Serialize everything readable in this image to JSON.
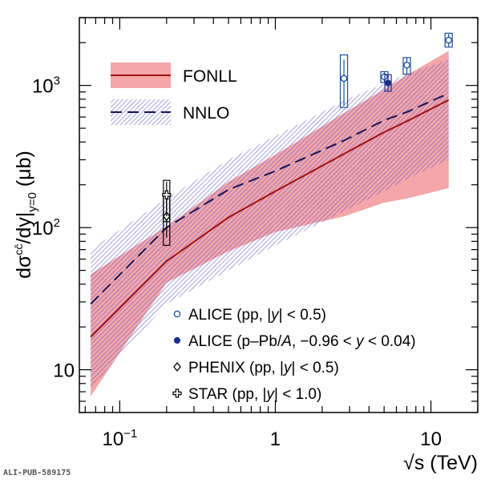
{
  "chart_data": {
    "type": "line",
    "xlabel": "√s (TeV)",
    "ylabel": "dσ^{cc̄}/dy|_{y=0} (μb)",
    "xscale": "log",
    "yscale": "log",
    "xlim": [
      0.055,
      20
    ],
    "ylim": [
      5,
      3000
    ],
    "xticks": [
      {
        "value": 0.1,
        "label": "10",
        "sup": "−1"
      },
      {
        "value": 1,
        "label": "1"
      },
      {
        "value": 10,
        "label": "10"
      }
    ],
    "yticks": [
      {
        "value": 10,
        "label": "10"
      },
      {
        "value": 100,
        "label": "10",
        "sup": "2"
      },
      {
        "value": 1000,
        "label": "10",
        "sup": "3"
      }
    ],
    "bands": [
      {
        "name": "FONLL",
        "color": "#f4a6a8",
        "line_color": "#a01010",
        "line_style": "solid",
        "x": [
          0.065,
          0.2,
          0.5,
          1.0,
          2.76,
          5.02,
          7.0,
          13.0
        ],
        "central": [
          17,
          58,
          118,
          180,
          330,
          470,
          560,
          790
        ],
        "lower": [
          6.5,
          41,
          68,
          93,
          120,
          150,
          160,
          190
        ],
        "upper": [
          47,
          102,
          210,
          325,
          640,
          940,
          1180,
          1750
        ]
      },
      {
        "name": "NNLO",
        "color": "#6a5acd",
        "line_color": "#14145a",
        "line_style": "dashed",
        "x": [
          0.065,
          0.2,
          0.5,
          1.0,
          2.76,
          5.02,
          7.0,
          13.0
        ],
        "central": [
          29,
          100,
          185,
          250,
          410,
          570,
          650,
          880
        ],
        "lower": [
          7.5,
          29,
          50,
          75,
          130,
          180,
          220,
          300
        ],
        "upper": [
          70,
          160,
          300,
          440,
          780,
          1030,
          1200,
          1520
        ]
      }
    ],
    "points": [
      {
        "series": "ALICE (pp, |y| < 0.5)",
        "marker": "circle-open",
        "color": "#1b4aa0",
        "x": 2.76,
        "y": 1120,
        "err_lo": 720,
        "err_hi": 1520,
        "box_lo": 700,
        "box_hi": 1640
      },
      {
        "series": "ALICE (pp, |y| < 0.5)",
        "marker": "circle-open",
        "color": "#1b4aa0",
        "x": 5.02,
        "y": 1150,
        "err_lo": 1060,
        "err_hi": 1240,
        "box_lo": 1050,
        "box_hi": 1250
      },
      {
        "series": "ALICE (pp, |y| < 0.5)",
        "marker": "circle-open",
        "color": "#1b4aa0",
        "x": 7.0,
        "y": 1390,
        "err_lo": 1200,
        "err_hi": 1560,
        "box_lo": 1200,
        "box_hi": 1570
      },
      {
        "series": "ALICE (pp, |y| < 0.5)",
        "marker": "circle-open",
        "color": "#1b4aa0",
        "x": 13.0,
        "y": 2080,
        "err_lo": 1880,
        "err_hi": 2300,
        "box_lo": 1860,
        "box_hi": 2330
      },
      {
        "series": "ALICE (p–Pb/A, −0.96 < y < 0.04)",
        "marker": "circle-filled",
        "color": "#1b2f8a",
        "x": 5.3,
        "y": 1040,
        "err_lo": 920,
        "err_hi": 1180,
        "box_lo": 910,
        "box_hi": 1190
      },
      {
        "series": "PHENIX (pp, |y| < 0.5)",
        "marker": "diamond-open",
        "color": "#000000",
        "x": 0.2,
        "y": 120,
        "err_lo": 85,
        "err_hi": 160,
        "box_lo": 75,
        "box_hi": 170
      },
      {
        "series": "STAR (pp, |y| < 1.0)",
        "marker": "cross-open",
        "color": "#000000",
        "x": 0.2,
        "y": 170,
        "err_lo": 120,
        "err_hi": 210,
        "box_lo": 110,
        "box_hi": 215
      }
    ],
    "legend": {
      "bands": [
        "FONLL",
        "NNLO"
      ],
      "data": [
        {
          "label": "ALICE (pp, |y| < 0.5)",
          "marker": "circle-open",
          "color": "#1b4aa0"
        },
        {
          "label": "ALICE (p–Pb/A, −0.96 < y < 0.04)",
          "marker": "circle-filled",
          "color": "#1b2f8a"
        },
        {
          "label": "PHENIX (pp, |y| < 0.5)",
          "marker": "diamond-open",
          "color": "#000000"
        },
        {
          "label": "STAR (pp, |y| < 1.0)",
          "marker": "cross-open",
          "color": "#000000"
        }
      ]
    },
    "watermark": "ALI-PUB-589175"
  }
}
